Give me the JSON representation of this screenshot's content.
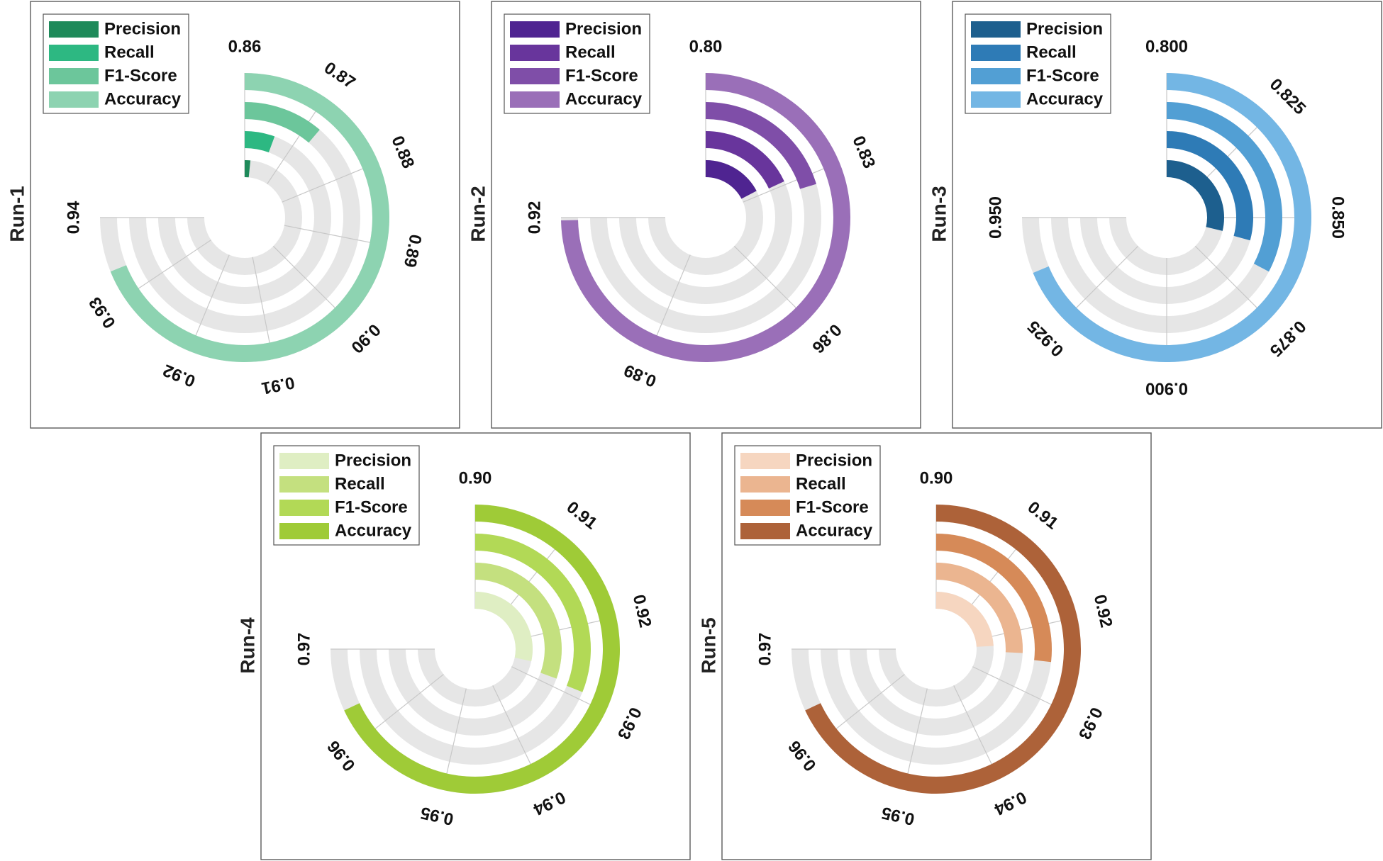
{
  "chart_data": [
    {
      "type": "radial-bar",
      "run_label": "Run-1",
      "metrics": [
        "Precision",
        "Recall",
        "F1-Score",
        "Accuracy"
      ],
      "values": [
        0.8617,
        0.866,
        0.872,
        0.9335
      ],
      "colors": [
        "#1e8a5a",
        "#2db882",
        "#6cc69b",
        "#8dd3b1"
      ],
      "axis_min": 0.86,
      "axis_max": 0.94,
      "ticks": [
        "0.86",
        "0.87",
        "0.88",
        "0.89",
        "0.90",
        "0.91",
        "0.92",
        "0.93",
        "0.94"
      ]
    },
    {
      "type": "radial-bar",
      "run_label": "Run-2",
      "metrics": [
        "Precision",
        "Recall",
        "F1-Score",
        "Accuracy"
      ],
      "values": [
        0.8277,
        0.829,
        0.8325,
        0.9195
      ],
      "colors": [
        "#4f2491",
        "#68359c",
        "#7f4ea8",
        "#9a6fb8"
      ],
      "axis_min": 0.8,
      "axis_max": 0.92,
      "ticks": [
        "0.80",
        "0.83",
        "0.86",
        "0.89",
        "0.92"
      ]
    },
    {
      "type": "radial-bar",
      "run_label": "Run-3",
      "metrics": [
        "Precision",
        "Recall",
        "F1-Score",
        "Accuracy"
      ],
      "values": [
        0.8575,
        0.8585,
        0.8655,
        0.9375
      ],
      "colors": [
        "#1d5f8e",
        "#2e7bb6",
        "#529fd4",
        "#73b6e4"
      ],
      "axis_min": 0.8,
      "axis_max": 0.95,
      "ticks": [
        "0.800",
        "0.825",
        "0.850",
        "0.875",
        "0.900",
        "0.925",
        "0.950"
      ]
    },
    {
      "type": "radial-bar",
      "run_label": "Run-4",
      "metrics": [
        "Precision",
        "Recall",
        "F1-Score",
        "Accuracy"
      ],
      "values": [
        0.9265,
        0.9285,
        0.929,
        0.9635
      ],
      "colors": [
        "#dfeec3",
        "#c4e07f",
        "#b2d956",
        "#9fcb37"
      ],
      "axis_min": 0.9,
      "axis_max": 0.97,
      "ticks": [
        "0.90",
        "0.91",
        "0.92",
        "0.93",
        "0.94",
        "0.95",
        "0.96",
        "0.97"
      ]
    },
    {
      "type": "radial-bar",
      "run_label": "Run-5",
      "metrics": [
        "Precision",
        "Recall",
        "F1-Score",
        "Accuracy"
      ],
      "values": [
        0.9225,
        0.924,
        0.925,
        0.9635
      ],
      "colors": [
        "#f6d6c0",
        "#ebb590",
        "#d68a58",
        "#ad6239"
      ],
      "axis_min": 0.9,
      "axis_max": 0.97,
      "ticks": [
        "0.90",
        "0.91",
        "0.92",
        "0.93",
        "0.94",
        "0.95",
        "0.96",
        "0.97"
      ]
    }
  ]
}
